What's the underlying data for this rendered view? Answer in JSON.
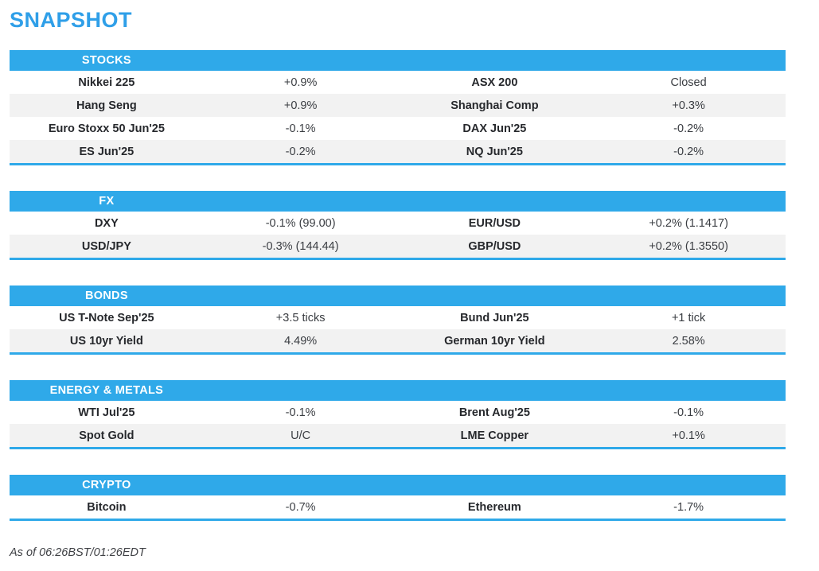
{
  "page_title": "SNAPSHOT",
  "footer": {
    "as_of": "As of 06:26BST/01:26EDT"
  },
  "colors": {
    "accent_blue": "#2fa9e9",
    "title_blue": "#2f9fe8",
    "stripe_gray": "#f2f2f2",
    "label_text": "#26282c",
    "value_text": "#3a3d42"
  },
  "sections": [
    {
      "title": "STOCKS",
      "rows": [
        {
          "cells": [
            "Nikkei 225",
            "+0.9%",
            "ASX 200",
            "Closed"
          ]
        },
        {
          "cells": [
            "Hang Seng",
            "+0.9%",
            "Shanghai Comp",
            "+0.3%"
          ]
        },
        {
          "cells": [
            "Euro Stoxx 50 Jun'25",
            "-0.1%",
            "DAX Jun'25",
            "-0.2%"
          ]
        },
        {
          "cells": [
            "ES Jun'25",
            "-0.2%",
            "NQ Jun'25",
            "-0.2%"
          ]
        }
      ]
    },
    {
      "title": "FX",
      "rows": [
        {
          "cells": [
            "DXY",
            "-0.1% (99.00)",
            "EUR/USD",
            "+0.2% (1.1417)"
          ]
        },
        {
          "cells": [
            "USD/JPY",
            "-0.3% (144.44)",
            "GBP/USD",
            "+0.2% (1.3550)"
          ]
        }
      ]
    },
    {
      "title": "BONDS",
      "rows": [
        {
          "cells": [
            "US T-Note Sep'25",
            "+3.5 ticks",
            "Bund Jun'25",
            "+1 tick"
          ]
        },
        {
          "cells": [
            "US 10yr Yield",
            "4.49%",
            "German 10yr Yield",
            "2.58%"
          ]
        }
      ]
    },
    {
      "title": "ENERGY & METALS",
      "rows": [
        {
          "cells": [
            "WTI Jul'25",
            "-0.1%",
            "Brent Aug'25",
            "-0.1%"
          ]
        },
        {
          "cells": [
            "Spot Gold",
            "U/C",
            "LME Copper",
            "+0.1%"
          ]
        }
      ]
    },
    {
      "title": "CRYPTO",
      "rows": [
        {
          "cells": [
            "Bitcoin",
            "-0.7%",
            "Ethereum",
            "-1.7%"
          ]
        }
      ]
    }
  ]
}
